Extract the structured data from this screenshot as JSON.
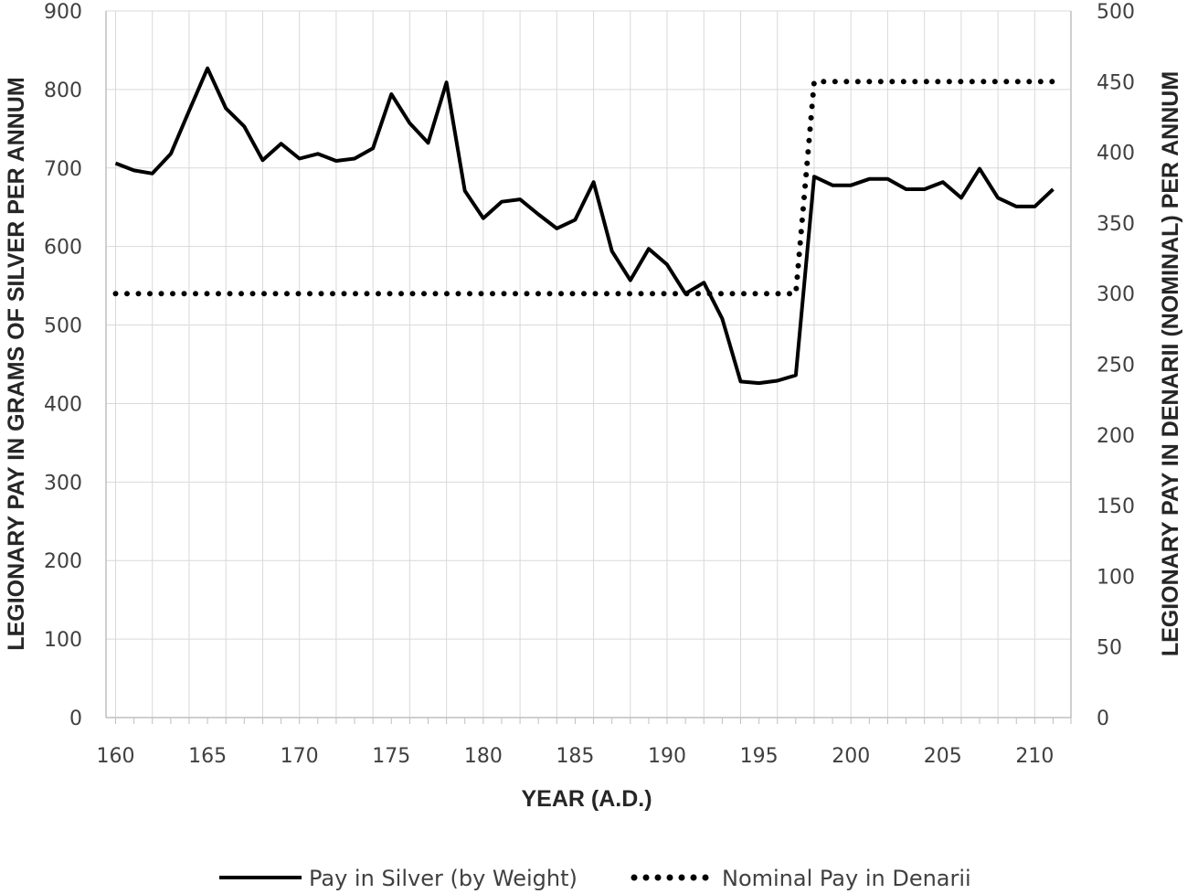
{
  "chart_data": {
    "type": "line",
    "title": "",
    "xlabel": "YEAR (A.D.)",
    "ylabel": "LEGIONARY PAY IN GRAMS OF SILVER PER ANNUM",
    "y2label": "LEGIONARY PAY IN DENARII (NOMINAL) PER ANNUM",
    "xlim": [
      160,
      211
    ],
    "ylim": [
      0,
      900
    ],
    "y2lim": [
      0,
      500
    ],
    "xticks": [
      160,
      165,
      170,
      175,
      180,
      185,
      190,
      195,
      200,
      205,
      210
    ],
    "yticks": [
      0,
      100,
      200,
      300,
      400,
      500,
      600,
      700,
      800,
      900
    ],
    "y2ticks": [
      0,
      50,
      100,
      150,
      200,
      250,
      300,
      350,
      400,
      450,
      500
    ],
    "grid": true,
    "legend_position": "bottom",
    "series": [
      {
        "name": "Pay in Silver (by Weight)",
        "axis": "left",
        "style": "solid",
        "color": "#000000",
        "x": [
          160,
          161,
          162,
          163,
          164,
          165,
          166,
          167,
          168,
          169,
          170,
          171,
          172,
          173,
          174,
          175,
          176,
          177,
          178,
          179,
          180,
          181,
          182,
          183,
          184,
          185,
          186,
          187,
          188,
          189,
          190,
          191,
          192,
          193,
          194,
          195,
          196,
          197,
          198,
          199,
          200,
          201,
          202,
          203,
          204,
          205,
          206,
          207,
          208,
          209,
          210,
          211
        ],
        "values": [
          706,
          697,
          693,
          718,
          773,
          827,
          776,
          753,
          710,
          731,
          712,
          718,
          709,
          712,
          725,
          794,
          757,
          732,
          809,
          671,
          636,
          657,
          660,
          641,
          623,
          634,
          682,
          594,
          557,
          597,
          577,
          540,
          554,
          508,
          428,
          426,
          429,
          436,
          689,
          678,
          678,
          686,
          686,
          673,
          673,
          682,
          662,
          699,
          662,
          651,
          651,
          673
        ]
      },
      {
        "name": "Nominal Pay in Denarii",
        "axis": "right",
        "style": "dotted",
        "color": "#000000",
        "x": [
          160,
          161,
          162,
          163,
          164,
          165,
          166,
          167,
          168,
          169,
          170,
          171,
          172,
          173,
          174,
          175,
          176,
          177,
          178,
          179,
          180,
          181,
          182,
          183,
          184,
          185,
          186,
          187,
          188,
          189,
          190,
          191,
          192,
          193,
          194,
          195,
          196,
          197,
          198,
          199,
          200,
          201,
          202,
          203,
          204,
          205,
          206,
          207,
          208,
          209,
          210,
          211
        ],
        "values": [
          300,
          300,
          300,
          300,
          300,
          300,
          300,
          300,
          300,
          300,
          300,
          300,
          300,
          300,
          300,
          300,
          300,
          300,
          300,
          300,
          300,
          300,
          300,
          300,
          300,
          300,
          300,
          300,
          300,
          300,
          300,
          300,
          300,
          300,
          300,
          300,
          300,
          300,
          450,
          450,
          450,
          450,
          450,
          450,
          450,
          450,
          450,
          450,
          450,
          450,
          450,
          450
        ]
      }
    ]
  }
}
